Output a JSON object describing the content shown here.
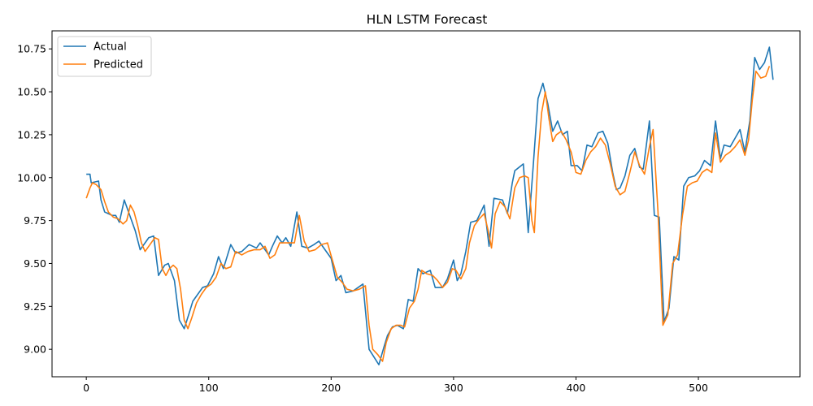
{
  "chart_data": {
    "type": "line",
    "title": "HLN LSTM Forecast",
    "xlabel": "",
    "ylabel": "",
    "xlim": [
      -28,
      583
    ],
    "ylim": [
      8.84,
      10.855
    ],
    "x_ticks": [
      0,
      100,
      200,
      300,
      400,
      500
    ],
    "y_ticks": [
      9.0,
      9.25,
      9.5,
      9.75,
      10.0,
      10.25,
      10.5,
      10.75
    ],
    "y_tick_labels": [
      "9.00",
      "9.25",
      "9.50",
      "9.75",
      "10.00",
      "10.25",
      "10.50",
      "10.75"
    ],
    "grid": false,
    "legend_position": "upper-left",
    "series": [
      {
        "name": "Actual",
        "color": "#1f77b4",
        "points": [
          [
            0,
            10.02
          ],
          [
            3,
            10.02
          ],
          [
            4,
            9.97
          ],
          [
            10,
            9.98
          ],
          [
            12,
            9.87
          ],
          [
            15,
            9.8
          ],
          [
            18,
            9.79
          ],
          [
            21,
            9.78
          ],
          [
            24,
            9.78
          ],
          [
            27,
            9.74
          ],
          [
            31,
            9.87
          ],
          [
            35,
            9.79
          ],
          [
            40,
            9.69
          ],
          [
            44,
            9.58
          ],
          [
            48,
            9.62
          ],
          [
            51,
            9.65
          ],
          [
            55,
            9.66
          ],
          [
            59,
            9.43
          ],
          [
            64,
            9.49
          ],
          [
            67,
            9.5
          ],
          [
            72,
            9.4
          ],
          [
            76,
            9.17
          ],
          [
            80,
            9.12
          ],
          [
            84,
            9.21
          ],
          [
            87,
            9.28
          ],
          [
            91,
            9.32
          ],
          [
            95,
            9.36
          ],
          [
            99,
            9.37
          ],
          [
            104,
            9.44
          ],
          [
            108,
            9.54
          ],
          [
            112,
            9.47
          ],
          [
            118,
            9.61
          ],
          [
            122,
            9.56
          ],
          [
            127,
            9.57
          ],
          [
            133,
            9.61
          ],
          [
            139,
            9.59
          ],
          [
            142,
            9.62
          ],
          [
            146,
            9.58
          ],
          [
            149,
            9.55
          ],
          [
            152,
            9.6
          ],
          [
            156,
            9.66
          ],
          [
            160,
            9.62
          ],
          [
            163,
            9.65
          ],
          [
            167,
            9.6
          ],
          [
            172,
            9.8
          ],
          [
            176,
            9.6
          ],
          [
            181,
            9.59
          ],
          [
            186,
            9.61
          ],
          [
            190,
            9.63
          ],
          [
            200,
            9.53
          ],
          [
            204,
            9.4
          ],
          [
            208,
            9.43
          ],
          [
            212,
            9.33
          ],
          [
            218,
            9.34
          ],
          [
            226,
            9.38
          ],
          [
            231,
            9.0
          ],
          [
            239,
            8.91
          ],
          [
            243,
            9.01
          ],
          [
            246,
            9.08
          ],
          [
            250,
            9.13
          ],
          [
            254,
            9.14
          ],
          [
            259,
            9.12
          ],
          [
            263,
            9.29
          ],
          [
            267,
            9.28
          ],
          [
            271,
            9.47
          ],
          [
            275,
            9.44
          ],
          [
            281,
            9.46
          ],
          [
            285,
            9.36
          ],
          [
            291,
            9.36
          ],
          [
            295,
            9.41
          ],
          [
            300,
            9.52
          ],
          [
            303,
            9.4
          ],
          [
            306,
            9.44
          ],
          [
            310,
            9.57
          ],
          [
            314,
            9.74
          ],
          [
            319,
            9.75
          ],
          [
            325,
            9.84
          ],
          [
            329,
            9.6
          ],
          [
            333,
            9.88
          ],
          [
            340,
            9.87
          ],
          [
            344,
            9.79
          ],
          [
            348,
            9.97
          ],
          [
            350,
            10.04
          ],
          [
            357,
            10.08
          ],
          [
            361,
            9.68
          ],
          [
            365,
            10.06
          ],
          [
            369,
            10.46
          ],
          [
            373,
            10.55
          ],
          [
            377,
            10.43
          ],
          [
            381,
            10.27
          ],
          [
            385,
            10.33
          ],
          [
            389,
            10.25
          ],
          [
            393,
            10.27
          ],
          [
            396,
            10.07
          ],
          [
            401,
            10.07
          ],
          [
            405,
            10.04
          ],
          [
            409,
            10.19
          ],
          [
            413,
            10.18
          ],
          [
            418,
            10.26
          ],
          [
            422,
            10.27
          ],
          [
            426,
            10.2
          ],
          [
            430,
            10.03
          ],
          [
            433,
            9.93
          ],
          [
            436,
            9.94
          ],
          [
            440,
            10.01
          ],
          [
            444,
            10.13
          ],
          [
            448,
            10.17
          ],
          [
            452,
            10.06
          ],
          [
            455,
            10.05
          ],
          [
            460,
            10.33
          ],
          [
            464,
            9.78
          ],
          [
            468,
            9.77
          ],
          [
            472,
            9.16
          ],
          [
            476,
            9.24
          ],
          [
            480,
            9.54
          ],
          [
            484,
            9.52
          ],
          [
            488,
            9.95
          ],
          [
            492,
            10.0
          ],
          [
            497,
            10.01
          ],
          [
            501,
            10.04
          ],
          [
            505,
            10.1
          ],
          [
            510,
            10.07
          ],
          [
            514,
            10.33
          ],
          [
            518,
            10.11
          ],
          [
            521,
            10.19
          ],
          [
            526,
            10.18
          ],
          [
            530,
            10.23
          ],
          [
            534,
            10.28
          ],
          [
            538,
            10.15
          ],
          [
            542,
            10.33
          ],
          [
            546,
            10.7
          ],
          [
            550,
            10.63
          ],
          [
            554,
            10.67
          ],
          [
            558,
            10.76
          ],
          [
            561,
            10.57
          ]
        ]
      },
      {
        "name": "Predicted",
        "color": "#ff7f0e",
        "points": [
          [
            0,
            9.88
          ],
          [
            3,
            9.94
          ],
          [
            5,
            9.97
          ],
          [
            8,
            9.96
          ],
          [
            12,
            9.93
          ],
          [
            15,
            9.86
          ],
          [
            18,
            9.8
          ],
          [
            22,
            9.77
          ],
          [
            26,
            9.76
          ],
          [
            30,
            9.73
          ],
          [
            33,
            9.75
          ],
          [
            36,
            9.84
          ],
          [
            39,
            9.8
          ],
          [
            42,
            9.72
          ],
          [
            45,
            9.62
          ],
          [
            48,
            9.57
          ],
          [
            52,
            9.61
          ],
          [
            56,
            9.65
          ],
          [
            59,
            9.64
          ],
          [
            62,
            9.47
          ],
          [
            65,
            9.43
          ],
          [
            68,
            9.47
          ],
          [
            71,
            9.49
          ],
          [
            74,
            9.47
          ],
          [
            77,
            9.35
          ],
          [
            80,
            9.17
          ],
          [
            83,
            9.12
          ],
          [
            86,
            9.18
          ],
          [
            90,
            9.27
          ],
          [
            94,
            9.32
          ],
          [
            98,
            9.36
          ],
          [
            102,
            9.38
          ],
          [
            106,
            9.42
          ],
          [
            110,
            9.5
          ],
          [
            114,
            9.47
          ],
          [
            118,
            9.48
          ],
          [
            122,
            9.57
          ],
          [
            127,
            9.55
          ],
          [
            132,
            9.57
          ],
          [
            137,
            9.58
          ],
          [
            142,
            9.58
          ],
          [
            146,
            9.6
          ],
          [
            150,
            9.53
          ],
          [
            154,
            9.55
          ],
          [
            158,
            9.62
          ],
          [
            162,
            9.62
          ],
          [
            166,
            9.62
          ],
          [
            170,
            9.62
          ],
          [
            174,
            9.78
          ],
          [
            178,
            9.63
          ],
          [
            182,
            9.57
          ],
          [
            187,
            9.58
          ],
          [
            192,
            9.61
          ],
          [
            197,
            9.62
          ],
          [
            201,
            9.52
          ],
          [
            205,
            9.42
          ],
          [
            209,
            9.39
          ],
          [
            213,
            9.35
          ],
          [
            218,
            9.34
          ],
          [
            223,
            9.35
          ],
          [
            228,
            9.37
          ],
          [
            231,
            9.14
          ],
          [
            234,
            9.0
          ],
          [
            238,
            8.97
          ],
          [
            242,
            8.93
          ],
          [
            245,
            9.04
          ],
          [
            249,
            9.12
          ],
          [
            253,
            9.14
          ],
          [
            257,
            9.14
          ],
          [
            260,
            9.13
          ],
          [
            264,
            9.24
          ],
          [
            268,
            9.28
          ],
          [
            271,
            9.35
          ],
          [
            274,
            9.46
          ],
          [
            278,
            9.44
          ],
          [
            283,
            9.43
          ],
          [
            287,
            9.4
          ],
          [
            291,
            9.36
          ],
          [
            295,
            9.39
          ],
          [
            299,
            9.47
          ],
          [
            302,
            9.46
          ],
          [
            306,
            9.41
          ],
          [
            310,
            9.47
          ],
          [
            313,
            9.62
          ],
          [
            317,
            9.72
          ],
          [
            321,
            9.76
          ],
          [
            325,
            9.79
          ],
          [
            328,
            9.7
          ],
          [
            331,
            9.59
          ],
          [
            334,
            9.79
          ],
          [
            338,
            9.86
          ],
          [
            342,
            9.83
          ],
          [
            346,
            9.76
          ],
          [
            350,
            9.94
          ],
          [
            354,
            10.0
          ],
          [
            358,
            10.01
          ],
          [
            361,
            10.0
          ],
          [
            364,
            9.75
          ],
          [
            366,
            9.68
          ],
          [
            369,
            10.12
          ],
          [
            372,
            10.38
          ],
          [
            375,
            10.5
          ],
          [
            378,
            10.34
          ],
          [
            381,
            10.21
          ],
          [
            384,
            10.25
          ],
          [
            388,
            10.27
          ],
          [
            392,
            10.22
          ],
          [
            396,
            10.15
          ],
          [
            400,
            10.03
          ],
          [
            404,
            10.02
          ],
          [
            408,
            10.1
          ],
          [
            412,
            10.15
          ],
          [
            416,
            10.18
          ],
          [
            420,
            10.23
          ],
          [
            424,
            10.19
          ],
          [
            428,
            10.08
          ],
          [
            432,
            9.95
          ],
          [
            436,
            9.9
          ],
          [
            440,
            9.92
          ],
          [
            444,
            10.03
          ],
          [
            448,
            10.15
          ],
          [
            452,
            10.07
          ],
          [
            456,
            10.02
          ],
          [
            460,
            10.18
          ],
          [
            463,
            10.28
          ],
          [
            467,
            9.8
          ],
          [
            471,
            9.14
          ],
          [
            475,
            9.2
          ],
          [
            479,
            9.5
          ],
          [
            483,
            9.55
          ],
          [
            487,
            9.78
          ],
          [
            491,
            9.95
          ],
          [
            495,
            9.97
          ],
          [
            499,
            9.98
          ],
          [
            503,
            10.03
          ],
          [
            507,
            10.05
          ],
          [
            511,
            10.03
          ],
          [
            514,
            10.26
          ],
          [
            518,
            10.09
          ],
          [
            522,
            10.13
          ],
          [
            526,
            10.15
          ],
          [
            530,
            10.18
          ],
          [
            534,
            10.22
          ],
          [
            538,
            10.13
          ],
          [
            541,
            10.22
          ],
          [
            544,
            10.45
          ],
          [
            547,
            10.62
          ],
          [
            551,
            10.58
          ],
          [
            555,
            10.59
          ],
          [
            558,
            10.65
          ]
        ]
      }
    ]
  }
}
